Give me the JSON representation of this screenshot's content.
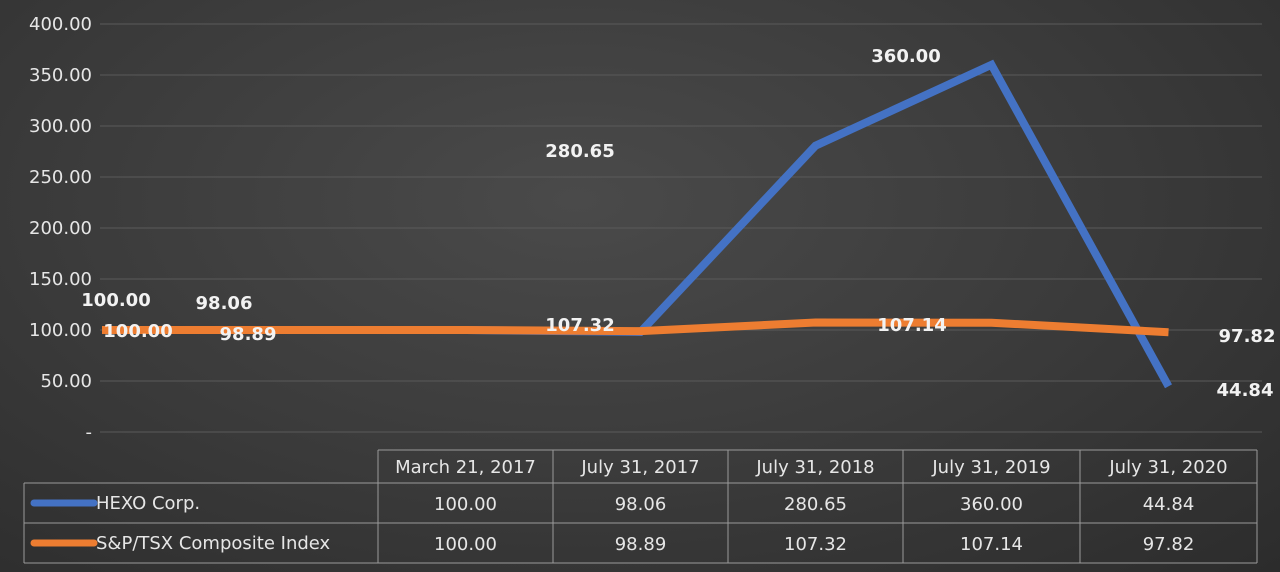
{
  "chart_data": {
    "type": "line",
    "categories": [
      "March 21, 2017",
      "July 31, 2017",
      "July 31, 2018",
      "July 31, 2019",
      "July 31, 2020"
    ],
    "ylim": [
      0,
      400
    ],
    "yticks": [
      "-",
      "50.00",
      "100.00",
      "150.00",
      "200.00",
      "250.00",
      "300.00",
      "350.00",
      "400.00"
    ],
    "grid": true,
    "legend": "data table below chart",
    "series": [
      {
        "name": "HEXO Corp.",
        "color": "#4472c4",
        "values": [
          100.0,
          98.06,
          280.65,
          360.0,
          44.84
        ],
        "labels": [
          "100.00",
          "98.06",
          "280.65",
          "360.00",
          "44.84"
        ]
      },
      {
        "name": "S&P/TSX Composite Index",
        "color": "#ed7d31",
        "values": [
          100.0,
          98.89,
          107.32,
          107.14,
          97.82
        ],
        "labels": [
          "100.00",
          "98.89",
          "107.32",
          "107.14",
          "97.82"
        ]
      }
    ]
  }
}
